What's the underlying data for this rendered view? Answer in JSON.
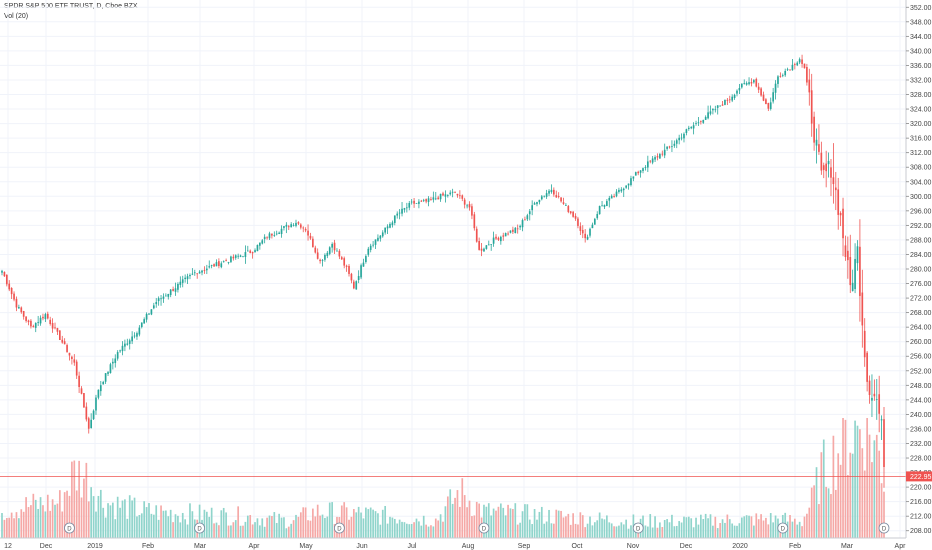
{
  "chart_data": {
    "type": "candlestick",
    "title": "SPDR S&P 500 ETF TRUST, D, Cboe BZX",
    "indicator": "Vol (20)",
    "last_price": "222.95",
    "yaxis": {
      "range": [
        206,
        354
      ],
      "ticks": [
        "208.00",
        "212.00",
        "216.00",
        "220.00",
        "224.00",
        "228.00",
        "232.00",
        "236.00",
        "240.00",
        "244.00",
        "248.00",
        "252.00",
        "256.00",
        "260.00",
        "264.00",
        "268.00",
        "272.00",
        "276.00",
        "280.00",
        "284.00",
        "288.00",
        "292.00",
        "296.00",
        "300.00",
        "304.00",
        "308.00",
        "312.00",
        "316.00",
        "320.00",
        "324.00",
        "328.00",
        "332.00",
        "336.00",
        "340.00",
        "344.00",
        "348.00",
        "352.00"
      ]
    },
    "xaxis": {
      "ticks": [
        "12",
        "Dec",
        "2019",
        "Feb",
        "Mar",
        "Apr",
        "May",
        "Jun",
        "Jul",
        "Aug",
        "Sep",
        "Oct",
        "Nov",
        "Dec",
        "2020",
        "Feb",
        "Mar",
        "Apr"
      ]
    },
    "dividend_marker": "D",
    "close_anchors": [
      [
        0,
        279.5
      ],
      [
        6,
        270
      ],
      [
        12,
        264
      ],
      [
        18,
        267.5
      ],
      [
        24,
        261
      ],
      [
        30,
        254
      ],
      [
        36,
        236
      ],
      [
        40,
        247
      ],
      [
        48,
        257
      ],
      [
        56,
        263
      ],
      [
        64,
        271
      ],
      [
        72,
        275
      ],
      [
        80,
        279
      ],
      [
        88,
        281
      ],
      [
        96,
        283
      ],
      [
        104,
        285
      ],
      [
        110,
        289
      ],
      [
        116,
        291
      ],
      [
        122,
        293
      ],
      [
        126,
        291
      ],
      [
        132,
        282
      ],
      [
        137,
        287
      ],
      [
        143,
        280
      ],
      [
        146,
        275
      ],
      [
        152,
        286
      ],
      [
        158,
        290
      ],
      [
        164,
        295
      ],
      [
        170,
        298
      ],
      [
        176,
        298.5
      ],
      [
        182,
        300
      ],
      [
        188,
        301
      ],
      [
        194,
        297
      ],
      [
        198,
        285
      ],
      [
        204,
        288
      ],
      [
        210,
        290
      ],
      [
        214,
        291
      ],
      [
        222,
        299
      ],
      [
        228,
        302
      ],
      [
        234,
        297
      ],
      [
        238,
        294
      ],
      [
        242,
        288
      ],
      [
        248,
        297
      ],
      [
        254,
        300
      ],
      [
        260,
        304
      ],
      [
        266,
        308
      ],
      [
        272,
        311
      ],
      [
        278,
        314
      ],
      [
        284,
        318
      ],
      [
        290,
        321
      ],
      [
        296,
        324
      ],
      [
        302,
        327
      ],
      [
        306,
        330
      ],
      [
        312,
        332
      ],
      [
        318,
        324
      ],
      [
        322,
        333
      ],
      [
        328,
        336
      ],
      [
        331,
        338
      ],
      [
        333,
        335
      ],
      [
        336,
        322
      ],
      [
        340,
        305
      ],
      [
        344,
        308
      ],
      [
        348,
        294
      ],
      [
        352,
        275
      ],
      [
        355,
        285
      ],
      [
        357,
        266
      ],
      [
        359,
        250
      ],
      [
        361,
        246
      ],
      [
        363,
        244
      ],
      [
        365,
        236
      ],
      [
        366,
        228
      ]
    ],
    "volume_anchors": [
      [
        0,
        0.24
      ],
      [
        24,
        0.3
      ],
      [
        30,
        0.55
      ],
      [
        36,
        0.5
      ],
      [
        42,
        0.3
      ],
      [
        60,
        0.22
      ],
      [
        100,
        0.18
      ],
      [
        120,
        0.14
      ],
      [
        130,
        0.22
      ],
      [
        150,
        0.2
      ],
      [
        180,
        0.15
      ],
      [
        190,
        0.38
      ],
      [
        200,
        0.22
      ],
      [
        230,
        0.18
      ],
      [
        260,
        0.14
      ],
      [
        290,
        0.14
      ],
      [
        320,
        0.16
      ],
      [
        332,
        0.14
      ],
      [
        336,
        0.3
      ],
      [
        340,
        0.55
      ],
      [
        346,
        0.7
      ],
      [
        352,
        0.85
      ],
      [
        358,
        0.95
      ],
      [
        364,
        0.7
      ],
      [
        366,
        0.5
      ]
    ],
    "dividend_days": [
      28,
      82,
      140,
      200,
      264,
      324,
      366
    ],
    "up_color": "#26a69a",
    "down_color": "#ef5350",
    "price_line_color": "#ef5350",
    "grid": true
  }
}
